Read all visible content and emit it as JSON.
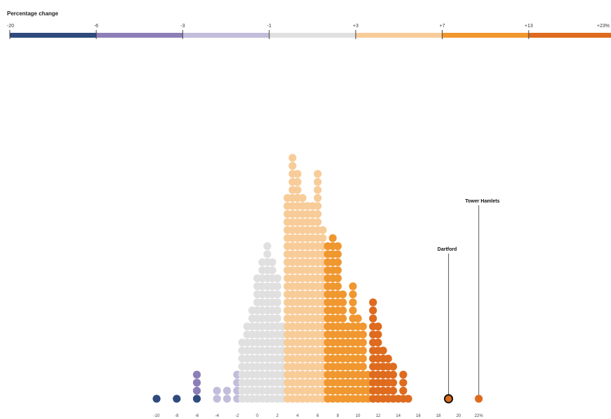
{
  "chart_data": {
    "type": "dot-histogram",
    "legend": {
      "title": "Percentage change",
      "ticks": [
        "-20",
        "-6",
        "-3",
        "-1",
        "+3",
        "+7",
        "+13",
        "+23%"
      ],
      "segments": [
        {
          "from": -20,
          "to": -6,
          "color": "#2f4a7d"
        },
        {
          "from": -6,
          "to": -3,
          "color": "#8c7fb8"
        },
        {
          "from": -3,
          "to": -1,
          "color": "#c2bddb"
        },
        {
          "from": -1,
          "to": 3,
          "color": "#e0e0e0"
        },
        {
          "from": 3,
          "to": 7,
          "color": "#f8cc99"
        },
        {
          "from": 7,
          "to": 13,
          "color": "#f0972f"
        },
        {
          "from": 13,
          "to": 23,
          "color": "#de6b1e"
        }
      ]
    },
    "x_tick_labels": [
      "-10",
      "-8",
      "-6",
      "-4",
      "-2",
      "0",
      "2",
      "4",
      "6",
      "8",
      "10",
      "12",
      "14",
      "16",
      "18",
      "20",
      "22%"
    ],
    "columns": [
      {
        "x": -10,
        "count": 1,
        "color": "#2f4a7d"
      },
      {
        "x": -8,
        "count": 1,
        "color": "#2f4a7d"
      },
      {
        "x": -6,
        "count": 1,
        "color": "#2f4a7d"
      },
      {
        "x": -6,
        "count": 3,
        "color": "#8c7fb8",
        "stack_offset": 1
      },
      {
        "x": -4,
        "count": 2,
        "color": "#c2bddb"
      },
      {
        "x": -3,
        "count": 2,
        "color": "#c2bddb"
      },
      {
        "x": -2,
        "count": 4,
        "color": "#c2bddb"
      },
      {
        "x": -1.5,
        "count": 8,
        "color": "#e0e0e0"
      },
      {
        "x": -1,
        "count": 10,
        "color": "#e0e0e0"
      },
      {
        "x": -0.5,
        "count": 12,
        "color": "#e0e0e0"
      },
      {
        "x": 0,
        "count": 16,
        "color": "#e0e0e0"
      },
      {
        "x": 0.5,
        "count": 18,
        "color": "#e0e0e0"
      },
      {
        "x": 1,
        "count": 20,
        "color": "#e0e0e0"
      },
      {
        "x": 1.5,
        "count": 18,
        "color": "#e0e0e0"
      },
      {
        "x": 2,
        "count": 16,
        "color": "#e0e0e0"
      },
      {
        "x": 2.5,
        "count": 10,
        "color": "#e0e0e0"
      },
      {
        "x": 3,
        "count": 26,
        "color": "#f8cc99"
      },
      {
        "x": 3.5,
        "count": 31,
        "color": "#f8cc99"
      },
      {
        "x": 4,
        "count": 29,
        "color": "#f8cc99"
      },
      {
        "x": 4.5,
        "count": 26,
        "color": "#f8cc99"
      },
      {
        "x": 5,
        "count": 25,
        "color": "#f8cc99"
      },
      {
        "x": 5.5,
        "count": 25,
        "color": "#f8cc99"
      },
      {
        "x": 6,
        "count": 29,
        "color": "#f8cc99"
      },
      {
        "x": 6.5,
        "count": 22,
        "color": "#f8cc99"
      },
      {
        "x": 7,
        "count": 20,
        "color": "#f0972f"
      },
      {
        "x": 7.5,
        "count": 21,
        "color": "#f0972f"
      },
      {
        "x": 8,
        "count": 20,
        "color": "#f0972f"
      },
      {
        "x": 8.5,
        "count": 14,
        "color": "#f0972f"
      },
      {
        "x": 9,
        "count": 10,
        "color": "#f0972f"
      },
      {
        "x": 9.5,
        "count": 15,
        "color": "#f0972f"
      },
      {
        "x": 10,
        "count": 11,
        "color": "#f0972f"
      },
      {
        "x": 10.5,
        "count": 10,
        "color": "#f0972f"
      },
      {
        "x": 11,
        "count": 4,
        "color": "#f0972f"
      },
      {
        "x": 11.5,
        "count": 13,
        "color": "#de6b1e"
      },
      {
        "x": 12,
        "count": 10,
        "color": "#de6b1e"
      },
      {
        "x": 12.5,
        "count": 7,
        "color": "#de6b1e"
      },
      {
        "x": 13,
        "count": 6,
        "color": "#de6b1e"
      },
      {
        "x": 13.5,
        "count": 5,
        "color": "#de6b1e"
      },
      {
        "x": 14,
        "count": 1,
        "color": "#de6b1e"
      },
      {
        "x": 14.5,
        "count": 4,
        "color": "#de6b1e"
      },
      {
        "x": 15,
        "count": 1,
        "color": "#de6b1e"
      }
    ],
    "highlights": [
      {
        "label": "Dartford",
        "x": 19,
        "color": "#de6b1e",
        "outlined": true
      },
      {
        "label": "Tower Hamlets",
        "x": 22,
        "color": "#de6b1e",
        "outlined": false
      }
    ]
  }
}
